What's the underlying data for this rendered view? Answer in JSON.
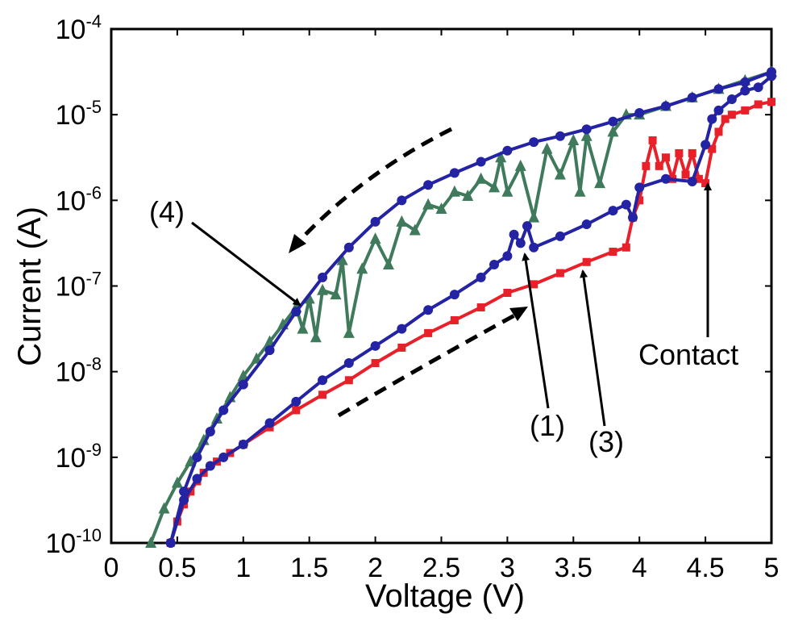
{
  "chart_data": {
    "type": "line",
    "title": "",
    "xlabel": "Voltage (V)",
    "ylabel": "Current (A)",
    "xlim": [
      0,
      5
    ],
    "ylim_log10": [
      -10,
      -4
    ],
    "yscale": "log",
    "grid": false,
    "x_ticks": [
      "0",
      "0.5",
      "1",
      "1.5",
      "2",
      "2.5",
      "3",
      "3.5",
      "4",
      "4.5",
      "5"
    ],
    "x_tick_values": [
      0,
      0.5,
      1,
      1.5,
      2,
      2.5,
      3,
      3.5,
      4,
      4.5,
      5
    ],
    "y_ticks": [
      {
        "base": "10",
        "exp": "-10",
        "value": -10
      },
      {
        "base": "10",
        "exp": "-9",
        "value": -9
      },
      {
        "base": "10",
        "exp": "-8",
        "value": -8
      },
      {
        "base": "10",
        "exp": "-7",
        "value": -7
      },
      {
        "base": "10",
        "exp": "-6",
        "value": -6
      },
      {
        "base": "10",
        "exp": "-5",
        "value": -5
      },
      {
        "base": "10",
        "exp": "-4",
        "value": -4
      }
    ],
    "series": [
      {
        "name": "(3) red squares",
        "color": "#e8202a",
        "marker": "square",
        "x": [
          0.45,
          0.5,
          0.55,
          0.6,
          0.65,
          0.7,
          0.8,
          0.9,
          1.0,
          1.2,
          1.4,
          1.6,
          1.8,
          2.0,
          2.2,
          2.4,
          2.6,
          2.8,
          3.0,
          3.2,
          3.4,
          3.6,
          3.8,
          3.9,
          3.95,
          4.0,
          4.05,
          4.1,
          4.15,
          4.2,
          4.25,
          4.3,
          4.35,
          4.4,
          4.45,
          4.5,
          4.55,
          4.6,
          4.65,
          4.7,
          4.8,
          4.9,
          5.0
        ],
        "log10_y": [
          -10.0,
          -9.75,
          -9.55,
          -9.4,
          -9.28,
          -9.18,
          -9.05,
          -8.95,
          -8.85,
          -8.65,
          -8.45,
          -8.27,
          -8.1,
          -7.9,
          -7.72,
          -7.55,
          -7.4,
          -7.25,
          -7.08,
          -6.98,
          -6.85,
          -6.72,
          -6.6,
          -6.55,
          -6.2,
          -6.0,
          -5.6,
          -5.3,
          -5.6,
          -5.5,
          -5.75,
          -5.45,
          -5.7,
          -5.45,
          -5.75,
          -5.8,
          -5.4,
          -5.2,
          -5.05,
          -5.0,
          -4.95,
          -4.88,
          -4.85
        ]
      },
      {
        "name": "(1) blue circles",
        "color": "#2323a3",
        "marker": "circle",
        "x": [
          0.45,
          0.55,
          0.65,
          0.75,
          0.85,
          1.0,
          1.2,
          1.4,
          1.6,
          1.8,
          2.0,
          2.2,
          2.4,
          2.6,
          2.8,
          2.9,
          3.0,
          3.05,
          3.1,
          3.15,
          3.2,
          3.4,
          3.6,
          3.8,
          3.9,
          3.95,
          4.0,
          4.2,
          4.4,
          4.5,
          4.55,
          4.6,
          4.7,
          4.8,
          4.9,
          5.0
        ],
        "log10_y": [
          -10.0,
          -9.5,
          -9.25,
          -9.1,
          -9.0,
          -8.85,
          -8.6,
          -8.35,
          -8.1,
          -7.9,
          -7.7,
          -7.5,
          -7.28,
          -7.1,
          -6.9,
          -6.75,
          -6.65,
          -6.4,
          -6.5,
          -6.3,
          -6.55,
          -6.42,
          -6.28,
          -6.12,
          -6.05,
          -6.2,
          -5.85,
          -5.75,
          -5.78,
          -5.35,
          -5.05,
          -4.95,
          -4.82,
          -4.72,
          -4.68,
          -4.55
        ]
      },
      {
        "name": "(4) blue circles return",
        "color": "#2323a3",
        "marker": "circle",
        "x": [
          0.45,
          0.55,
          0.65,
          0.75,
          0.85,
          1.0,
          1.2,
          1.4,
          1.6,
          1.8,
          2.0,
          2.2,
          2.4,
          2.6,
          2.8,
          3.0,
          3.2,
          3.4,
          3.6,
          3.8,
          4.0,
          4.2,
          4.4,
          4.6,
          4.8,
          5.0
        ],
        "log10_y": [
          -10.0,
          -9.4,
          -9.0,
          -8.7,
          -8.45,
          -8.15,
          -7.75,
          -7.3,
          -6.9,
          -6.55,
          -6.25,
          -6.0,
          -5.82,
          -5.68,
          -5.55,
          -5.42,
          -5.32,
          -5.25,
          -5.17,
          -5.08,
          -4.98,
          -4.9,
          -4.8,
          -4.7,
          -4.62,
          -4.5
        ]
      },
      {
        "name": "green triangles",
        "color": "#3e7a5b",
        "marker": "triangle",
        "x": [
          0.3,
          0.4,
          0.5,
          0.6,
          0.7,
          0.8,
          0.9,
          1.0,
          1.1,
          1.2,
          1.3,
          1.4,
          1.45,
          1.5,
          1.55,
          1.6,
          1.7,
          1.75,
          1.8,
          1.9,
          2.0,
          2.1,
          2.2,
          2.3,
          2.4,
          2.5,
          2.6,
          2.7,
          2.8,
          2.9,
          2.95,
          3.0,
          3.1,
          3.2,
          3.3,
          3.4,
          3.5,
          3.55,
          3.6,
          3.7,
          3.8,
          3.9,
          4.0,
          4.2,
          4.4,
          4.6,
          4.8,
          5.0
        ],
        "log10_y": [
          -10.0,
          -9.6,
          -9.3,
          -9.05,
          -8.8,
          -8.55,
          -8.3,
          -8.05,
          -7.85,
          -7.65,
          -7.45,
          -7.25,
          -7.5,
          -7.15,
          -7.6,
          -7.05,
          -7.1,
          -6.7,
          -7.55,
          -6.8,
          -6.45,
          -6.75,
          -6.25,
          -6.35,
          -6.05,
          -6.1,
          -5.9,
          -5.95,
          -5.75,
          -5.85,
          -5.5,
          -5.9,
          -5.6,
          -6.2,
          -5.4,
          -5.7,
          -5.3,
          -5.9,
          -5.25,
          -5.8,
          -5.2,
          -5.0,
          -5.0,
          -4.9,
          -4.8,
          -4.7,
          -4.6,
          -4.5
        ]
      }
    ],
    "annotations": [
      {
        "label": "(4)",
        "points_to": [
          1.45,
          -7.2
        ]
      },
      {
        "label": "(1)",
        "points_to": [
          3.1,
          -6.45
        ]
      },
      {
        "label": "(3)",
        "points_to": [
          3.55,
          -6.85
        ]
      },
      {
        "label": "Contact",
        "points_to": [
          4.5,
          -5.75
        ]
      }
    ]
  }
}
